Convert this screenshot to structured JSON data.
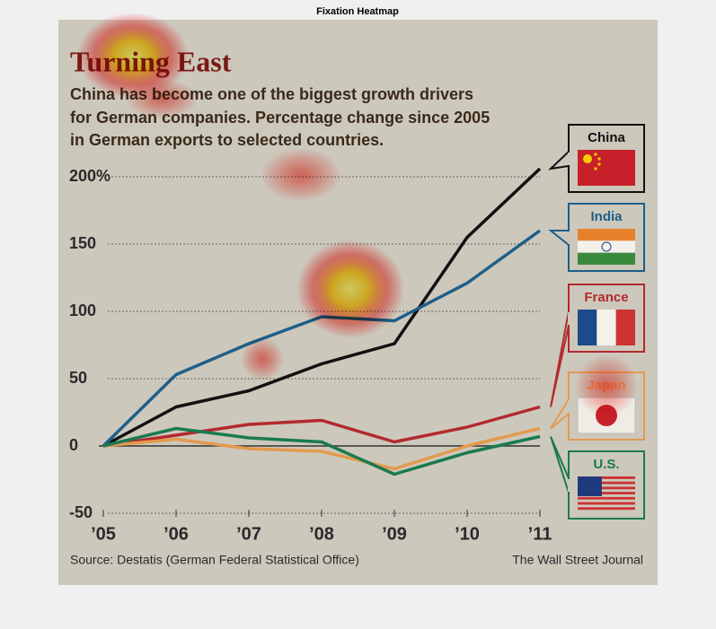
{
  "figure_title": "Fixation Heatmap",
  "chart_data": {
    "type": "line",
    "title": "Turning East",
    "subtitle": [
      "China has become one of the biggest growth drivers",
      "for German companies. Percentage change since 2005",
      "in German exports to selected countries."
    ],
    "source": "Source: Destatis (German Federal Statistical Office)",
    "credit": "The Wall Street Journal",
    "categories": [
      "’05",
      "’06",
      "’07",
      "’08",
      "’09",
      "’10",
      "’11"
    ],
    "series": [
      {
        "name": "China",
        "color": "#111111",
        "values": [
          0,
          29,
          41,
          61,
          76,
          155,
          206
        ]
      },
      {
        "name": "India",
        "color": "#1d5f8a",
        "values": [
          0,
          53,
          76,
          96,
          93,
          121,
          160
        ]
      },
      {
        "name": "France",
        "color": "#b22a2e",
        "values": [
          0,
          8,
          16,
          19,
          3,
          14,
          29
        ]
      },
      {
        "name": "Japan",
        "color": "#e39a4f",
        "values": [
          0,
          5,
          -2,
          -4,
          -17,
          0,
          13
        ]
      },
      {
        "name": "U.S.",
        "color": "#1a7a4f",
        "values": [
          0,
          13,
          6,
          3,
          -21,
          -5,
          7
        ]
      }
    ],
    "ylim": [
      -50,
      200
    ],
    "yticks": [
      -50,
      0,
      50,
      100,
      150,
      {
        "value": 200,
        "label": "200%"
      }
    ],
    "grid": true
  }
}
